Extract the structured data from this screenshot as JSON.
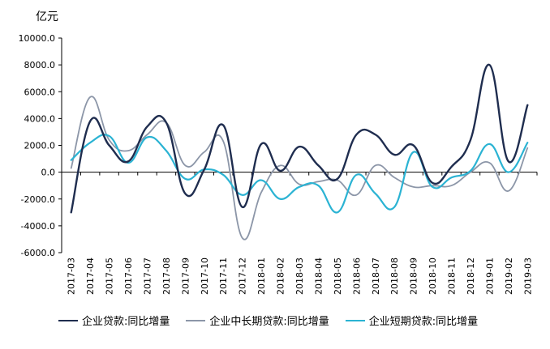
{
  "chart_data": {
    "type": "line",
    "unit_label": "亿元",
    "categories": [
      "2017-03",
      "2017-04",
      "2017-05",
      "2017-06",
      "2017-07",
      "2017-08",
      "2017-09",
      "2017-10",
      "2017-11",
      "2017-12",
      "2018-01",
      "2018-02",
      "2018-03",
      "2018-04",
      "2018-05",
      "2018-06",
      "2018-07",
      "2018-08",
      "2018-09",
      "2018-10",
      "2018-11",
      "2018-12",
      "2019-01",
      "2019-02",
      "2019-03"
    ],
    "y_ticks": [
      "10000.0",
      "8000.0",
      "6000.0",
      "4000.0",
      "2000.0",
      "0.0",
      "-2000.0",
      "-4000.0",
      "-6000.0"
    ],
    "ylim": [
      -6000,
      10000
    ],
    "grid": false,
    "legend_position": "bottom",
    "series": [
      {
        "name": "企业贷款:同比增量",
        "color": "#1f2d4f",
        "width": 2.4,
        "values": [
          -3000,
          3800,
          2000,
          800,
          3400,
          3700,
          -1600,
          200,
          3500,
          -2600,
          2100,
          100,
          1900,
          500,
          -500,
          2800,
          2800,
          1300,
          2000,
          -800,
          400,
          2400,
          8000,
          800,
          5000
        ]
      },
      {
        "name": "企业中长期贷款:同比增量",
        "color": "#8c96a8",
        "width": 1.8,
        "values": [
          300,
          5600,
          2400,
          1600,
          2800,
          3700,
          500,
          1500,
          2300,
          -4900,
          -1500,
          500,
          -900,
          -700,
          -600,
          -1700,
          500,
          -400,
          -1100,
          -1000,
          -1000,
          0,
          700,
          -1400,
          1800
        ]
      },
      {
        "name": "企业短期贷款:同比增量",
        "color": "#2bb3d3",
        "width": 2.2,
        "values": [
          900,
          2200,
          2700,
          700,
          2600,
          1600,
          -500,
          200,
          -200,
          -1700,
          -600,
          -2000,
          -1100,
          -1000,
          -3000,
          -200,
          -1600,
          -2600,
          1500,
          -1100,
          -400,
          100,
          2100,
          0,
          2200
        ]
      }
    ]
  }
}
